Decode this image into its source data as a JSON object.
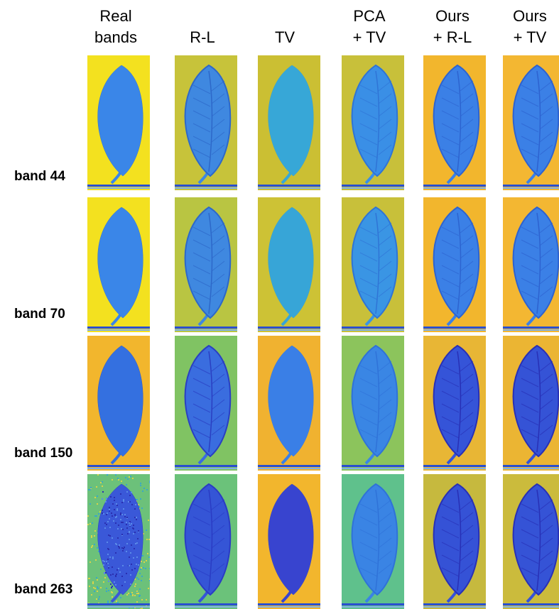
{
  "column_headers": [
    "Real\nbands",
    "R-L",
    "TV",
    "PCA\n+ TV",
    "Ours\n+ R-L",
    "Ours\n+ TV"
  ],
  "row_labels": [
    "band 44",
    "band 70",
    "band 150",
    "band 263"
  ],
  "colors": {
    "yellow_bg": "#f2e227",
    "olive_bg": "#c9c439",
    "green_bg": "#7fc462",
    "teal_bg": "#4fc39a",
    "orange_bg": "#f2b02a",
    "leaf_blue": "#3f7fe6",
    "leaf_dark": "#2b3fc8",
    "leaf_teal": "#36a9d6",
    "stripe_blue": "#2340c8"
  },
  "tiles": [
    [
      {
        "bg": "#f3e11f",
        "leaf": "#3a86e8",
        "vein": "#2f6fd8",
        "stripe": "#2a4fd0",
        "pattern": "smooth"
      },
      {
        "bg": "#c7c33a",
        "leaf": "#3f88e0",
        "vein": "#2d68c9",
        "stripe": "#2a4fd0",
        "pattern": "veins"
      },
      {
        "bg": "#cbbf33",
        "leaf": "#37a7d7",
        "vein": "#35a0d0",
        "stripe": "#2a4fd0",
        "pattern": "smooth"
      },
      {
        "bg": "#c8c03a",
        "leaf": "#3a8fe6",
        "vein": "#2f74d6",
        "stripe": "#2a4fd0",
        "pattern": "veins"
      },
      {
        "bg": "#f2b62d",
        "leaf": "#3b80e6",
        "vein": "#2d64d0",
        "stripe": "#2a4fd0",
        "pattern": "veins"
      },
      {
        "bg": "#f3b732",
        "leaf": "#3b80e6",
        "vein": "#2d62d0",
        "stripe": "#2a4fd0",
        "pattern": "veins"
      }
    ],
    [
      {
        "bg": "#f3e11f",
        "leaf": "#3a86e8",
        "vein": "#2f6fd8",
        "stripe": "#2a4fd0",
        "pattern": "smooth"
      },
      {
        "bg": "#b9c542",
        "leaf": "#3f88e0",
        "vein": "#2d68c9",
        "stripe": "#2a4fd0",
        "pattern": "veins"
      },
      {
        "bg": "#cdc235",
        "leaf": "#37a5d7",
        "vein": "#35a0d0",
        "stripe": "#2a4fd0",
        "pattern": "smooth"
      },
      {
        "bg": "#c8c03a",
        "leaf": "#3a95e4",
        "vein": "#2f74d6",
        "stripe": "#2a4fd0",
        "pattern": "veins"
      },
      {
        "bg": "#f2b62d",
        "leaf": "#3b80e6",
        "vein": "#2d64d0",
        "stripe": "#2a4fd0",
        "pattern": "veins"
      },
      {
        "bg": "#f3b732",
        "leaf": "#3b80e6",
        "vein": "#2d62d0",
        "stripe": "#2a4fd0",
        "pattern": "veins"
      }
    ],
    [
      {
        "bg": "#f2b62d",
        "leaf": "#3470e0",
        "vein": "#2c57c9",
        "stripe": "#2a4fd0",
        "pattern": "smooth"
      },
      {
        "bg": "#80c363",
        "leaf": "#3a6ddf",
        "vein": "#2a3fc2",
        "stripe": "#2a4fd0",
        "pattern": "veins"
      },
      {
        "bg": "#f0b230",
        "leaf": "#3a7fe6",
        "vein": "#3577de",
        "stripe": "#2a4fd0",
        "pattern": "smooth"
      },
      {
        "bg": "#8cc45c",
        "leaf": "#3a86e4",
        "vein": "#2f72d8",
        "stripe": "#2a4fd0",
        "pattern": "veins"
      },
      {
        "bg": "#e8b635",
        "leaf": "#3554d8",
        "vein": "#2830b6",
        "stripe": "#2a4fd0",
        "pattern": "veins"
      },
      {
        "bg": "#ebb533",
        "leaf": "#3553d6",
        "vein": "#2830b6",
        "stripe": "#2a4fd0",
        "pattern": "veins"
      }
    ],
    [
      {
        "bg": "#6cc17a",
        "leaf": "#3a58d8",
        "vein": "#2a3cc4",
        "stripe": "#2a4fd0",
        "pattern": "noise"
      },
      {
        "bg": "#6bc27a",
        "leaf": "#3555d6",
        "vein": "#2a3cc4",
        "stripe": "#2a4fd0",
        "pattern": "veins"
      },
      {
        "bg": "#f2b62d",
        "leaf": "#3844cf",
        "vein": "#3242c6",
        "stripe": "#2a4fd0",
        "pattern": "smooth"
      },
      {
        "bg": "#5fc18c",
        "leaf": "#3a84e4",
        "vein": "#2f72d8",
        "stripe": "#2a4fd0",
        "pattern": "veins"
      },
      {
        "bg": "#c6b93e",
        "leaf": "#3552d6",
        "vein": "#2830b6",
        "stripe": "#2a4fd0",
        "pattern": "veins"
      },
      {
        "bg": "#cbbb3c",
        "leaf": "#3553d6",
        "vein": "#2830b6",
        "stripe": "#2a4fd0",
        "pattern": "veins"
      }
    ]
  ]
}
